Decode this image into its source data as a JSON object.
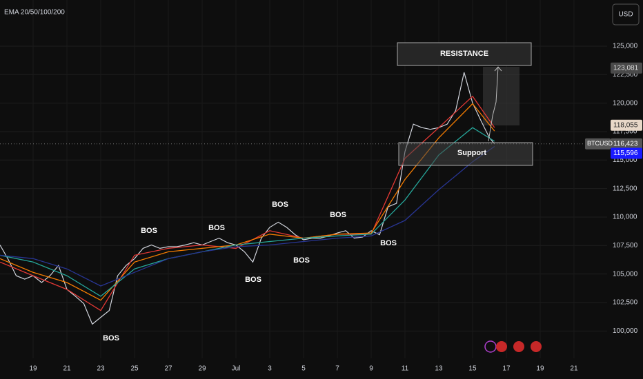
{
  "chart_data": {
    "type": "line",
    "title": "EMA 20/50/100/200",
    "currency": "USD",
    "symbol": "BTCUSD",
    "xlim": [
      -1.96,
      33.96
    ],
    "ylim": [
      97600,
      129050
    ],
    "xticks": [
      {
        "value": 0,
        "label": "19"
      },
      {
        "value": 2,
        "label": "21"
      },
      {
        "value": 4,
        "label": "23"
      },
      {
        "value": 6,
        "label": "25"
      },
      {
        "value": 8,
        "label": "27"
      },
      {
        "value": 10,
        "label": "29"
      },
      {
        "value": 12,
        "label": "Jul"
      },
      {
        "value": 14,
        "label": "3"
      },
      {
        "value": 16,
        "label": "5"
      },
      {
        "value": 18,
        "label": "7"
      },
      {
        "value": 20,
        "label": "9"
      },
      {
        "value": 22,
        "label": "11"
      },
      {
        "value": 24,
        "label": "13"
      },
      {
        "value": 26,
        "label": "15"
      },
      {
        "value": 28,
        "label": "17"
      },
      {
        "value": 30,
        "label": "19"
      },
      {
        "value": 32,
        "label": "21"
      }
    ],
    "yticks": [
      {
        "value": 100000,
        "label": "100,000"
      },
      {
        "value": 102500,
        "label": "102,500"
      },
      {
        "value": 105000,
        "label": "105,000"
      },
      {
        "value": 107500,
        "label": "107,500"
      },
      {
        "value": 110000,
        "label": "110,000"
      },
      {
        "value": 112500,
        "label": "112,500"
      },
      {
        "value": 115000,
        "label": "115,000"
      },
      {
        "value": 117500,
        "label": "117,500"
      },
      {
        "value": 120000,
        "label": "120,000"
      },
      {
        "value": 122500,
        "label": "122,500"
      },
      {
        "value": 125000,
        "label": "125,000"
      }
    ],
    "grid": true,
    "series": [
      {
        "name": "BTCUSD",
        "color": "#d1d4dc",
        "x": [
          -1.96,
          -1.5,
          -1,
          -0.5,
          0,
          0.5,
          1,
          1.5,
          2,
          2.5,
          3,
          3.5,
          4,
          4.5,
          5,
          5.5,
          6,
          6.5,
          7,
          7.5,
          8,
          8.5,
          9,
          9.5,
          10,
          10.5,
          11,
          11.5,
          12,
          12.5,
          13,
          13.5,
          14,
          14.5,
          15,
          15.5,
          16,
          16.5,
          17,
          17.5,
          18,
          18.5,
          19,
          19.5,
          20,
          20.5,
          21,
          21.5,
          22,
          22.5,
          23,
          23.5,
          24,
          24.5,
          25,
          25.5,
          26,
          26.5,
          27,
          27.3
        ],
        "values": [
          107550,
          106350,
          104850,
          104550,
          104850,
          104250,
          104850,
          105750,
          103650,
          103050,
          102400,
          100600,
          101200,
          101800,
          104850,
          105750,
          106350,
          107250,
          107550,
          107250,
          107400,
          107400,
          107550,
          107750,
          107550,
          107850,
          108150,
          107750,
          107550,
          106950,
          106050,
          108150,
          109100,
          109550,
          109100,
          108450,
          108000,
          108150,
          108150,
          108350,
          108600,
          108800,
          108150,
          108250,
          108800,
          108450,
          110900,
          111200,
          115750,
          118150,
          117850,
          117700,
          117850,
          118150,
          119350,
          122700,
          120000,
          118450,
          116950,
          116423
        ]
      },
      {
        "name": "EMA 20",
        "color": "#e53935",
        "x": [
          -1.96,
          0,
          2,
          4,
          6,
          8,
          10,
          12,
          14,
          16,
          18,
          20,
          22,
          24,
          26,
          27.3
        ],
        "values": [
          106050,
          104850,
          103650,
          101800,
          106650,
          107250,
          107550,
          107250,
          108800,
          108150,
          108500,
          108500,
          115150,
          117850,
          120600,
          117850
        ]
      },
      {
        "name": "EMA 50",
        "color": "#f57c00",
        "x": [
          -1.96,
          0,
          2,
          4,
          6,
          8,
          10,
          12,
          14,
          16,
          18,
          20,
          22,
          24,
          26,
          27.3
        ],
        "values": [
          106350,
          105150,
          104250,
          102700,
          106050,
          106950,
          107250,
          107550,
          108500,
          108150,
          108500,
          108600,
          113300,
          116950,
          119950,
          117550
        ]
      },
      {
        "name": "EMA 100",
        "color": "#26a69a",
        "x": [
          -1.96,
          0,
          2,
          4,
          6,
          8,
          10,
          12,
          14,
          16,
          18,
          20,
          22,
          24,
          26,
          27.3
        ],
        "values": [
          106650,
          106050,
          104850,
          103050,
          105450,
          106350,
          106950,
          107550,
          107850,
          108150,
          108350,
          108500,
          111500,
          115450,
          117850,
          116650
        ]
      },
      {
        "name": "EMA 200",
        "color": "#283593",
        "x": [
          -1.96,
          0,
          2,
          4,
          6,
          8,
          10,
          12,
          14,
          16,
          18,
          20,
          22,
          24,
          26,
          27.3
        ],
        "values": [
          106650,
          106350,
          105450,
          103950,
          105150,
          106350,
          106950,
          107400,
          107550,
          107850,
          108150,
          108350,
          109700,
          112400,
          114850,
          116200
        ]
      }
    ],
    "price_labels": [
      {
        "value": 123081,
        "label": "123,081"
      },
      {
        "value": 118055,
        "label": "118,055"
      },
      {
        "value": 116423,
        "label": "116,423"
      },
      {
        "value": 115596,
        "label": "115,596"
      }
    ],
    "annotations": [
      "RESISTANCE",
      "Support",
      "BOS",
      "BOS",
      "BOS",
      "BOS",
      "BOS",
      "BOS",
      "BOS",
      "BOS"
    ]
  }
}
